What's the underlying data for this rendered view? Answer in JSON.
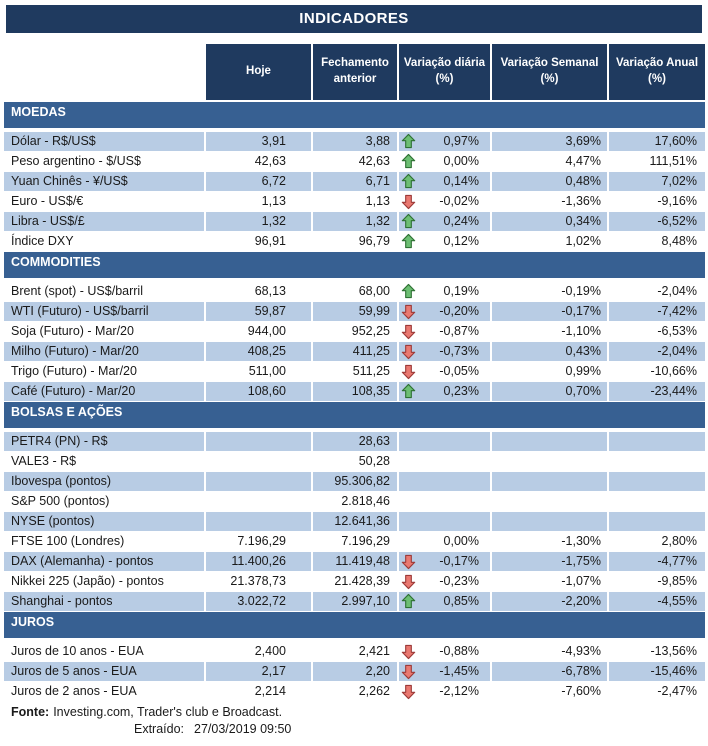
{
  "colors": {
    "title_navy": "#1F3A5F",
    "section_blue": "#376092",
    "row_shade": "#B8CCE4",
    "text_dark": "#1A1A1A",
    "arrow_up_fill": "#6CBE72",
    "arrow_up_stroke": "#2E7133",
    "arrow_down_fill": "#E97870",
    "arrow_down_stroke": "#9C3A38"
  },
  "chart_data": {
    "type": "table",
    "title": "INDICADORES",
    "columns": [
      "Hoje",
      "Fechamento anterior",
      "Variação diária (%)",
      "Variação Semanal (%)",
      "Variação Anual (%)"
    ],
    "sections": [
      {
        "name": "MOEDAS",
        "first_row_shaded": true,
        "rows": [
          {
            "label": "Dólar - R$/US$",
            "hoje": "3,91",
            "fechamento": "3,88",
            "arrow": "up",
            "var_diaria": "0,97%",
            "var_semanal": "3,69%",
            "var_anual": "17,60%"
          },
          {
            "label": "Peso argentino - $/US$",
            "hoje": "42,63",
            "fechamento": "42,63",
            "arrow": "up",
            "var_diaria": "0,00%",
            "var_semanal": "4,47%",
            "var_anual": "111,51%"
          },
          {
            "label": "Yuan Chinês - ¥/US$",
            "hoje": "6,72",
            "fechamento": "6,71",
            "arrow": "up",
            "var_diaria": "0,14%",
            "var_semanal": "0,48%",
            "var_anual": "7,02%"
          },
          {
            "label": "Euro - US$/€",
            "hoje": "1,13",
            "fechamento": "1,13",
            "arrow": "down",
            "var_diaria": "-0,02%",
            "var_semanal": "-1,36%",
            "var_anual": "-9,16%"
          },
          {
            "label": "Libra - US$/£",
            "hoje": "1,32",
            "fechamento": "1,32",
            "arrow": "up",
            "var_diaria": "0,24%",
            "var_semanal": "0,34%",
            "var_anual": "-6,52%"
          },
          {
            "label": "Índice DXY",
            "hoje": "96,91",
            "fechamento": "96,79",
            "arrow": "up",
            "var_diaria": "0,12%",
            "var_semanal": "1,02%",
            "var_anual": "8,48%"
          }
        ]
      },
      {
        "name": "COMMODITIES",
        "first_row_shaded": false,
        "rows": [
          {
            "label": "Brent (spot) - US$/barril",
            "hoje": "68,13",
            "fechamento": "68,00",
            "arrow": "up",
            "var_diaria": "0,19%",
            "var_semanal": "-0,19%",
            "var_anual": "-2,04%"
          },
          {
            "label": "WTI (Futuro) - US$/barril",
            "hoje": "59,87",
            "fechamento": "59,99",
            "arrow": "down",
            "var_diaria": "-0,20%",
            "var_semanal": "-0,17%",
            "var_anual": "-7,42%"
          },
          {
            "label": "Soja (Futuro) - Mar/20",
            "hoje": "944,00",
            "fechamento": "952,25",
            "arrow": "down",
            "var_diaria": "-0,87%",
            "var_semanal": "-1,10%",
            "var_anual": "-6,53%"
          },
          {
            "label": "Milho (Futuro) - Mar/20",
            "hoje": "408,25",
            "fechamento": "411,25",
            "arrow": "down",
            "var_diaria": "-0,73%",
            "var_semanal": "0,43%",
            "var_anual": "-2,04%"
          },
          {
            "label": "Trigo (Futuro) - Mar/20",
            "hoje": "511,00",
            "fechamento": "511,25",
            "arrow": "down",
            "var_diaria": "-0,05%",
            "var_semanal": "0,99%",
            "var_anual": "-10,66%"
          },
          {
            "label": "Café (Futuro) - Mar/20",
            "hoje": "108,60",
            "fechamento": "108,35",
            "arrow": "up",
            "var_diaria": "0,23%",
            "var_semanal": "0,70%",
            "var_anual": "-23,44%"
          }
        ]
      },
      {
        "name": "BOLSAS E AÇÕES",
        "first_row_shaded": true,
        "rows": [
          {
            "label": "PETR4 (PN) - R$",
            "hoje": "",
            "fechamento": "28,63",
            "arrow": "none",
            "var_diaria": "",
            "var_semanal": "",
            "var_anual": ""
          },
          {
            "label": "VALE3 - R$",
            "hoje": "",
            "fechamento": "50,28",
            "arrow": "none",
            "var_diaria": "",
            "var_semanal": "",
            "var_anual": ""
          },
          {
            "label": "Ibovespa (pontos)",
            "hoje": "",
            "fechamento": "95.306,82",
            "arrow": "none",
            "var_diaria": "",
            "var_semanal": "",
            "var_anual": ""
          },
          {
            "label": "S&P 500 (pontos)",
            "hoje": "",
            "fechamento": "2.818,46",
            "arrow": "none",
            "var_diaria": "",
            "var_semanal": "",
            "var_anual": ""
          },
          {
            "label": "NYSE (pontos)",
            "hoje": "",
            "fechamento": "12.641,36",
            "arrow": "none",
            "var_diaria": "",
            "var_semanal": "",
            "var_anual": ""
          },
          {
            "label": "FTSE 100 (Londres)",
            "hoje": "7.196,29",
            "fechamento": "7.196,29",
            "arrow": "none",
            "var_diaria": "0,00%",
            "var_semanal": "-1,30%",
            "var_anual": "2,80%"
          },
          {
            "label": "DAX (Alemanha) - pontos",
            "hoje": "11.400,26",
            "fechamento": "11.419,48",
            "arrow": "down",
            "var_diaria": "-0,17%",
            "var_semanal": "-1,75%",
            "var_anual": "-4,77%"
          },
          {
            "label": "Nikkei 225 (Japão) - pontos",
            "hoje": "21.378,73",
            "fechamento": "21.428,39",
            "arrow": "down",
            "var_diaria": "-0,23%",
            "var_semanal": "-1,07%",
            "var_anual": "-9,85%"
          },
          {
            "label": "Shanghai - pontos",
            "hoje": "3.022,72",
            "fechamento": "2.997,10",
            "arrow": "up",
            "var_diaria": "0,85%",
            "var_semanal": "-2,20%",
            "var_anual": "-4,55%"
          }
        ]
      },
      {
        "name": "JUROS",
        "first_row_shaded": false,
        "rows": [
          {
            "label": "Juros de 10 anos - EUA",
            "hoje": "2,400",
            "fechamento": "2,421",
            "arrow": "down",
            "var_diaria": "-0,88%",
            "var_semanal": "-4,93%",
            "var_anual": "-13,56%"
          },
          {
            "label": "Juros de 5 anos - EUA",
            "hoje": "2,17",
            "fechamento": "2,20",
            "arrow": "down",
            "var_diaria": "-1,45%",
            "var_semanal": "-6,78%",
            "var_anual": "-15,46%"
          },
          {
            "label": "Juros de 2 anos - EUA",
            "hoje": "2,214",
            "fechamento": "2,262",
            "arrow": "down",
            "var_diaria": "-2,12%",
            "var_semanal": "-7,60%",
            "var_anual": "-2,47%"
          }
        ]
      }
    ]
  },
  "footer": {
    "fonte_label": "Fonte:",
    "fonte_text": "Investing.com, Trader's club e Broadcast.",
    "extraido_label": "Extraído:",
    "extraido_value": "27/03/2019 09:50"
  }
}
